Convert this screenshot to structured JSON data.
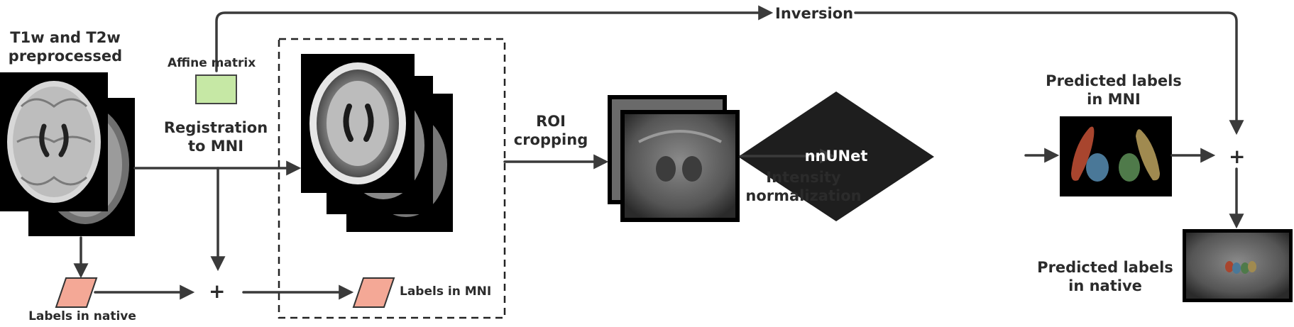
{
  "labels": {
    "input_title_line1": "T1w and T2w",
    "input_title_line2": "preprocessed",
    "affine_matrix": "Affine matrix",
    "inversion": "Inversion",
    "registration_line1": "Registration",
    "registration_line2": "to MNI",
    "roi_line1": "ROI",
    "roi_line2": "cropping",
    "intensity_line1": "Intensity",
    "intensity_line2": "normalization",
    "model": "nnUNet",
    "pred_mni_line1": "Predicted labels",
    "pred_mni_line2": "in MNI",
    "pred_native_line1": "Predicted labels",
    "pred_native_line2": "in native",
    "labels_native": "Labels in native",
    "labels_mni": "Labels in MNI",
    "plus": "+"
  },
  "colors": {
    "arrow": "#3a3a3a",
    "label_parallelogram": "#f4a896",
    "affine_box_fill": "#c6e8a5",
    "affine_box_stroke": "#444444",
    "diamond": "#1e1e1e",
    "pred_red": "#a8452e",
    "pred_blue": "#4a7898",
    "pred_green": "#4f7a4a",
    "pred_tan": "#a08a50"
  },
  "icons": [
    "brain-mri-t1w",
    "brain-mri-t2w",
    "mni-template-brain",
    "roi-crop-mri",
    "predicted-labels-mni",
    "predicted-labels-native",
    "label-parallelogram-icon",
    "affine-matrix-icon",
    "nnunet-diamond"
  ]
}
